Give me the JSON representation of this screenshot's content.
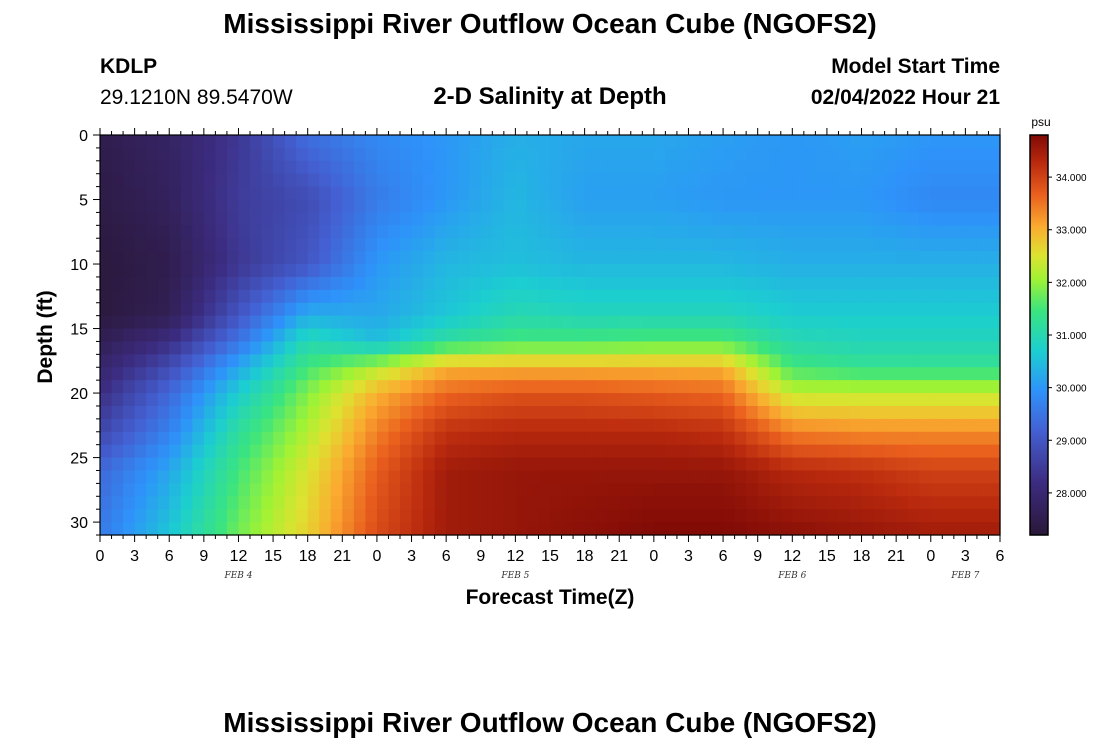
{
  "header": {
    "title": "Mississippi River Outflow Ocean Cube (NGOFS2)",
    "station_id": "KDLP",
    "station_coords": "29.1210N  89.5470W",
    "subtitle": "2-D Salinity at Depth",
    "model_start_label": "Model Start Time",
    "model_start_value": "02/04/2022 Hour 21"
  },
  "footer": {
    "title": "Mississippi River Outflow Ocean Cube (NGOFS2)"
  },
  "chart_data": {
    "type": "heatmap",
    "title": "2-D Salinity at Depth",
    "xlabel": "Forecast Time(Z)",
    "ylabel": "Depth (ft)",
    "x_tick_labels": [
      "0",
      "3",
      "6",
      "9",
      "12",
      "15",
      "18",
      "21",
      "0",
      "3",
      "6",
      "9",
      "12",
      "15",
      "18",
      "21",
      "0",
      "3",
      "6",
      "9",
      "12",
      "15",
      "18",
      "21",
      "0",
      "3",
      "6"
    ],
    "x_range_hours": [
      0,
      78
    ],
    "date_labels": [
      {
        "label": "FEB 4",
        "hour": 12
      },
      {
        "label": "FEB 5",
        "hour": 36
      },
      {
        "label": "FEB 6",
        "hour": 60
      },
      {
        "label": "FEB 7",
        "hour": 75
      }
    ],
    "y_ticks": [
      0,
      5,
      10,
      15,
      20,
      25,
      30
    ],
    "y_range_ft": [
      0,
      31
    ],
    "y_inverted": true,
    "colorbar": {
      "unit_label": "psu",
      "tick_labels": [
        "28.000",
        "29.000",
        "30.000",
        "31.000",
        "32.000",
        "33.000",
        "34.000"
      ],
      "ticks": [
        28,
        29,
        30,
        31,
        32,
        33,
        34
      ],
      "range": [
        27.2,
        34.8
      ]
    },
    "salinity_grid": {
      "hours": [
        0,
        6,
        12,
        18,
        24,
        30,
        36,
        42,
        48,
        54,
        60,
        66,
        72,
        78
      ],
      "depths_ft": [
        0,
        5,
        10,
        14,
        16,
        18,
        20,
        23,
        26,
        31
      ],
      "values_psu": [
        [
          27.5,
          27.8,
          28.4,
          29.4,
          29.8,
          30.0,
          30.3,
          30.2,
          30.2,
          30.1,
          30.0,
          30.1,
          30.0,
          30.0
        ],
        [
          27.4,
          27.7,
          28.5,
          28.8,
          29.6,
          30.0,
          30.4,
          30.1,
          30.1,
          30.0,
          30.0,
          30.0,
          29.8,
          29.8
        ],
        [
          27.3,
          27.5,
          28.4,
          29.0,
          30.0,
          30.4,
          30.5,
          30.4,
          30.4,
          30.4,
          30.3,
          30.3,
          30.3,
          30.3
        ],
        [
          27.3,
          27.6,
          29.0,
          30.3,
          30.2,
          30.6,
          31.0,
          30.9,
          30.9,
          30.9,
          30.7,
          30.7,
          30.7,
          30.7
        ],
        [
          27.6,
          28.2,
          29.5,
          31.0,
          30.5,
          31.2,
          31.5,
          31.5,
          31.6,
          31.6,
          31.0,
          30.9,
          30.9,
          30.9
        ],
        [
          27.9,
          28.8,
          30.2,
          31.5,
          32.2,
          33.0,
          33.0,
          33.0,
          33.0,
          33.0,
          31.5,
          31.3,
          31.3,
          31.3
        ],
        [
          28.2,
          29.3,
          30.7,
          31.9,
          33.0,
          33.6,
          33.8,
          33.8,
          33.7,
          33.6,
          32.3,
          32.3,
          32.3,
          32.3
        ],
        [
          28.7,
          29.7,
          31.2,
          32.2,
          33.4,
          34.2,
          34.3,
          34.3,
          34.3,
          34.2,
          33.4,
          33.3,
          33.3,
          33.3
        ],
        [
          29.3,
          30.2,
          31.5,
          32.5,
          33.7,
          34.5,
          34.6,
          34.6,
          34.6,
          34.6,
          34.3,
          34.2,
          34.0,
          34.0
        ],
        [
          29.6,
          30.6,
          31.8,
          32.7,
          33.9,
          34.5,
          34.6,
          34.7,
          34.8,
          34.8,
          34.7,
          34.6,
          34.5,
          34.5
        ]
      ]
    }
  }
}
